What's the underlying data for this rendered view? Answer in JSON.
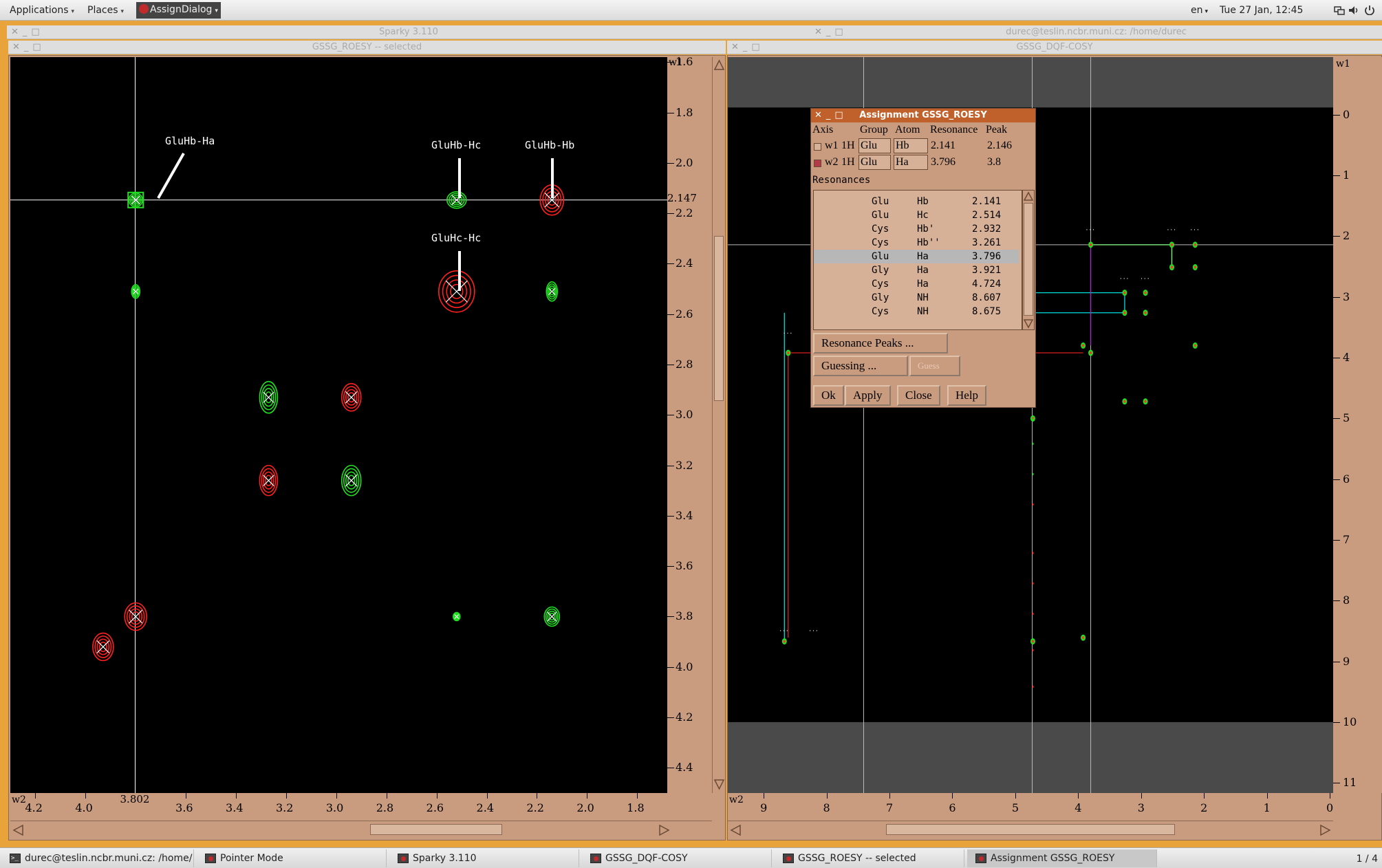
{
  "top_panel": {
    "applications": "Applications",
    "places": "Places",
    "active_app": "AssignDialog",
    "keyboard_layout": "en",
    "clock": "Tue 27 Jan, 12:45"
  },
  "windows": {
    "sparky_title": "Sparky 3.110",
    "terminal_title": "durec@teslin.ncbr.muni.cz: /home/durec",
    "roesy_title": "GSSG_ROESY -- selected",
    "cosy_title": "GSSG_DQF-COSY"
  },
  "roesy": {
    "w1_label": "w1",
    "w2_label": "w2",
    "cursor_w1": "2.147",
    "cursor_w2": "3.802",
    "y_ticks": [
      "1.6",
      "1.8",
      "2.0",
      "2.2",
      "2.4",
      "2.6",
      "2.8",
      "3.0",
      "3.2",
      "3.4",
      "3.6",
      "3.8",
      "4.0",
      "4.2",
      "4.4"
    ],
    "x_ticks": [
      "4.2",
      "4.0",
      "3.6",
      "3.4",
      "3.2",
      "3.0",
      "2.8",
      "2.6",
      "2.4",
      "2.2",
      "2.0",
      "1.8"
    ],
    "x_tick_values": [
      4.2,
      4.0,
      3.6,
      3.4,
      3.2,
      3.0,
      2.8,
      2.6,
      2.4,
      2.2,
      2.0,
      1.8
    ],
    "labels": [
      "GluHb-Ha",
      "GluHb-Hc",
      "GluHb-Hb",
      "GluHc-Hc"
    ],
    "colors": {
      "positive": "#ff2020",
      "negative": "#20e020",
      "cursor": "#ffffff"
    }
  },
  "cosy": {
    "w1_label": "w1",
    "w2_label": "w2",
    "y_ticks": [
      "0",
      "1",
      "2",
      "3",
      "4",
      "5",
      "6",
      "7",
      "8",
      "9",
      "10",
      "11"
    ],
    "x_ticks": [
      "9",
      "8",
      "7",
      "6",
      "5",
      "4",
      "3",
      "2",
      "1",
      "0"
    ]
  },
  "dialog": {
    "title": "Assignment GSSG_ROESY",
    "headers": {
      "axis": "Axis",
      "group": "Group",
      "atom": "Atom",
      "resonance": "Resonance",
      "peak": "Peak"
    },
    "axes": [
      {
        "axis": "w1",
        "nucleus": "1H",
        "group": "Glu",
        "atom": "Hb",
        "resonance": "2.141",
        "peak": "2.146",
        "checked": false
      },
      {
        "axis": "w2",
        "nucleus": "1H",
        "group": "Glu",
        "atom": "Ha",
        "resonance": "3.796",
        "peak": "3.8",
        "checked": true
      }
    ],
    "resonances_label": "Resonances",
    "resonances": [
      {
        "group": "Glu",
        "atom": "Hb",
        "shift": "2.141"
      },
      {
        "group": "Glu",
        "atom": "Hc",
        "shift": "2.514"
      },
      {
        "group": "Cys",
        "atom": "Hb'",
        "shift": "2.932"
      },
      {
        "group": "Cys",
        "atom": "Hb''",
        "shift": "3.261"
      },
      {
        "group": "Glu",
        "atom": "Ha",
        "shift": "3.796"
      },
      {
        "group": "Gly",
        "atom": "Ha",
        "shift": "3.921"
      },
      {
        "group": "Cys",
        "atom": "Ha",
        "shift": "4.724"
      },
      {
        "group": "Gly",
        "atom": "NH",
        "shift": "8.607"
      },
      {
        "group": "Cys",
        "atom": "NH",
        "shift": "8.675"
      }
    ],
    "selected_resonance": 4,
    "resonance_peaks_btn": "Resonance Peaks ...",
    "guessing_btn": "Guessing ...",
    "guess_btn": "Guess",
    "ok_btn": "Ok",
    "apply_btn": "Apply",
    "close_btn": "Close",
    "help_btn": "Help"
  },
  "taskbar": {
    "items": [
      "durec@teslin.ncbr.muni.cz: /home/...",
      "Pointer Mode",
      "Sparky 3.110",
      "GSSG_DQF-COSY",
      "GSSG_ROESY -- selected",
      "Assignment GSSG_ROESY"
    ],
    "workspace": "1 / 4"
  }
}
